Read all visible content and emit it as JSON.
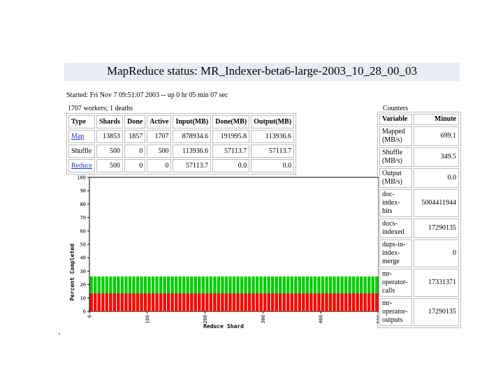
{
  "title": "MapReduce status: MR_Indexer-beta6-large-2003_10_28_00_03",
  "started": "Started: Fri Nov 7 09:51:07 2003 -- up 0 hr 05 min 07 sec",
  "workers": "1707 workers; 1 deaths",
  "phases": {
    "headers": [
      "Type",
      "Shards",
      "Done",
      "Active",
      "Input(MB)",
      "Done(MB)",
      "Output(MB)"
    ],
    "rows": [
      {
        "type": "Map",
        "link": true,
        "shards": "13853",
        "done": "1857",
        "active": "1707",
        "input": "878934.6",
        "done_mb": "191995.8",
        "output": "113936.6"
      },
      {
        "type": "Shuffle",
        "link": false,
        "shards": "500",
        "done": "0",
        "active": "500",
        "input": "113936.6",
        "done_mb": "57113.7",
        "output": "57113.7"
      },
      {
        "type": "Reduce",
        "link": true,
        "shards": "500",
        "done": "0",
        "active": "0",
        "input": "57113.7",
        "done_mb": "0.0",
        "output": "0.0"
      }
    ]
  },
  "counters": {
    "label": "Counters",
    "headers": [
      "Variable",
      "Minute"
    ],
    "rows": [
      {
        "name": "Mapped (MB/s)",
        "value": "699.1"
      },
      {
        "name": "Shuffle (MB/s)",
        "value": "349.5"
      },
      {
        "name": "Output (MB/s)",
        "value": "0.0"
      },
      {
        "name": "doc-index-hits",
        "value": "5004411944"
      },
      {
        "name": "docs-indexed",
        "value": "17290135"
      },
      {
        "name": "dups-in-index-merge",
        "value": "0"
      },
      {
        "name": "mr-operator-calls",
        "value": "17331371"
      },
      {
        "name": "mr-operator-outputs",
        "value": "17290135"
      }
    ]
  },
  "colors": {
    "copied": "#00cc00",
    "sorted": "#ff0000",
    "link": "#1a33cc",
    "title_bg": "#e8ecf4"
  },
  "chart_data": {
    "type": "bar",
    "xlabel": "Reduce Shard",
    "ylabel": "Percent Completed",
    "xlim": [
      0,
      500
    ],
    "ylim": [
      0,
      100
    ],
    "x_ticks": [
      "0",
      "100",
      "200",
      "300",
      "400",
      "500"
    ],
    "y_ticks": [
      "0",
      "10",
      "20",
      "30",
      "40",
      "50",
      "60",
      "70",
      "80",
      "90",
      "100"
    ],
    "num_bars": 75,
    "series": [
      {
        "color": "#ff0000",
        "value": 13.5
      },
      {
        "color": "#00cc00",
        "value": 26
      }
    ]
  }
}
